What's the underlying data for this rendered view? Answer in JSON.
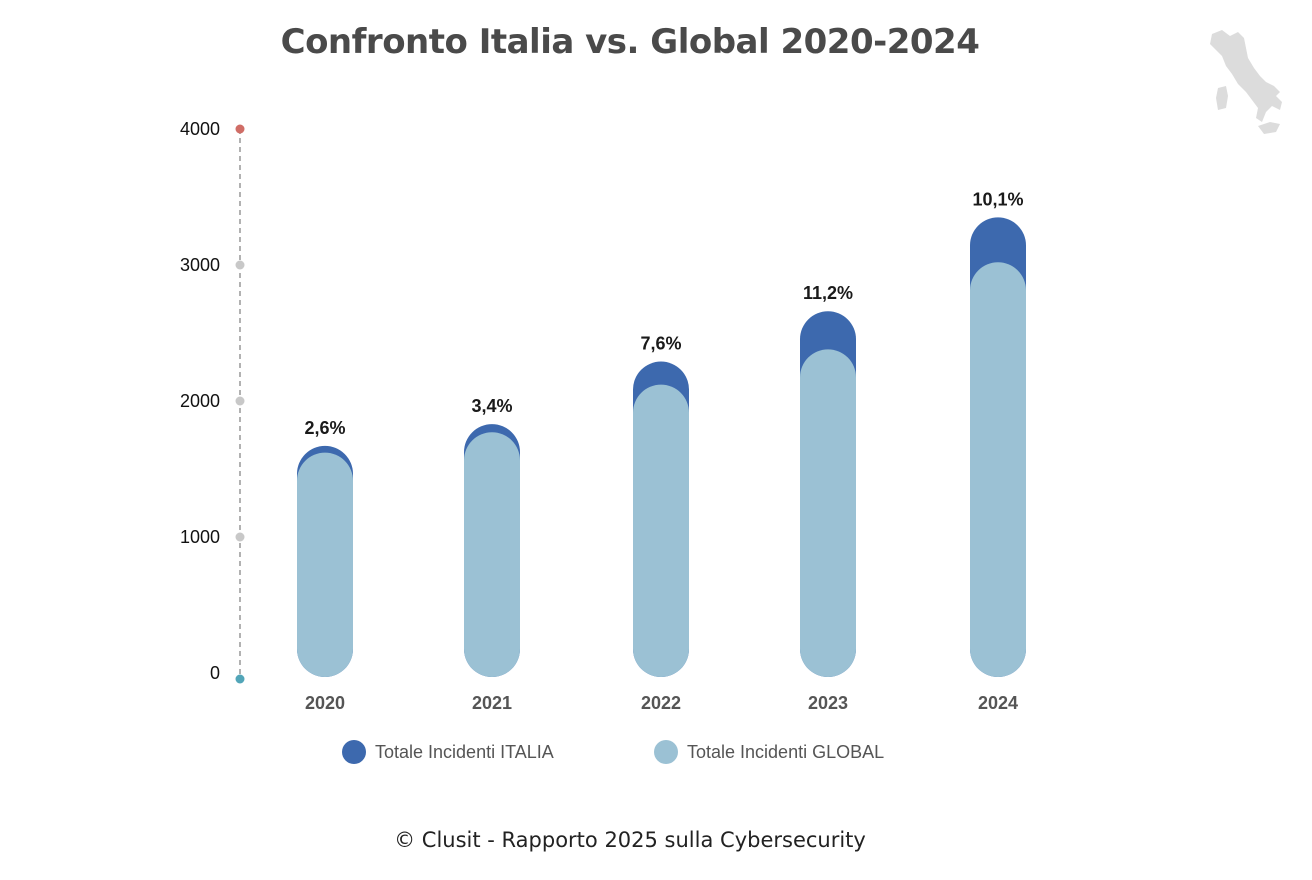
{
  "title": "Confronto Italia vs. Global 2020-2024",
  "footer": "© Clusit - Rapporto 2025 sulla Cybersecurity",
  "colors": {
    "italia": "#3d69ae",
    "global": "#9bc1d4",
    "axis": "#9e9e9e",
    "tick_dot": "#c8c8c8",
    "top_dot": "#d06d66",
    "bottom_dot": "#52a5b8"
  },
  "icons": {
    "map": "italy-map-icon"
  },
  "chart_data": {
    "type": "bar",
    "categories": [
      "2020",
      "2021",
      "2022",
      "2023",
      "2024"
    ],
    "series": [
      {
        "name": "Totale Incidenti ITALIA",
        "values": [
          1670,
          1830,
          2290,
          2660,
          3350
        ]
      },
      {
        "name": "Totale Incidenti GLOBAL",
        "values": [
          1620,
          1770,
          2120,
          2380,
          3020
        ]
      }
    ],
    "data_labels": [
      "2,6%",
      "3,4%",
      "7,6%",
      "11,2%",
      "10,1%"
    ],
    "y_ticks": [
      "0",
      "1000",
      "2000",
      "3000",
      "4000"
    ],
    "ylim": [
      0,
      4000
    ],
    "xlabel": "",
    "ylabel": "",
    "grid": false,
    "legend_position": "bottom"
  }
}
